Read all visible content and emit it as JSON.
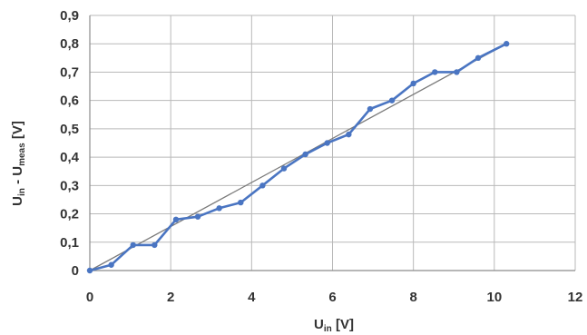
{
  "chart_data": {
    "type": "line",
    "xlabel": {
      "main": "U",
      "sub": "in",
      "unit": " [V]"
    },
    "ylabel": {
      "main1": "U",
      "sub1": "in",
      "mid": " - U",
      "sub2": "meas",
      "unit": " [V]"
    },
    "xlim": [
      0,
      12
    ],
    "ylim": [
      0,
      0.9
    ],
    "x_ticks": [
      "0",
      "2",
      "4",
      "6",
      "8",
      "10",
      "12"
    ],
    "y_ticks": [
      "0",
      "0,1",
      "0,2",
      "0,3",
      "0,4",
      "0,5",
      "0,6",
      "0,7",
      "0,8",
      "0,9"
    ],
    "grid": true,
    "legend": "none",
    "colors": {
      "series": "#4a75c2",
      "trend": "#7a7a7a"
    },
    "series": [
      {
        "x": [
          0,
          0.53,
          1.07,
          1.6,
          2.13,
          2.67,
          3.2,
          3.73,
          4.27,
          4.8,
          5.33,
          5.87,
          6.4,
          6.93,
          7.47,
          8.0,
          8.53,
          9.07,
          9.6,
          10.3
        ],
        "values": [
          0,
          0.02,
          0.09,
          0.09,
          0.18,
          0.19,
          0.22,
          0.24,
          0.3,
          0.36,
          0.41,
          0.45,
          0.48,
          0.57,
          0.6,
          0.66,
          0.7,
          0.7,
          0.75,
          0.8
        ]
      }
    ],
    "trendline": {
      "x": [
        0,
        10.3
      ],
      "values": [
        0,
        0.8
      ]
    }
  }
}
